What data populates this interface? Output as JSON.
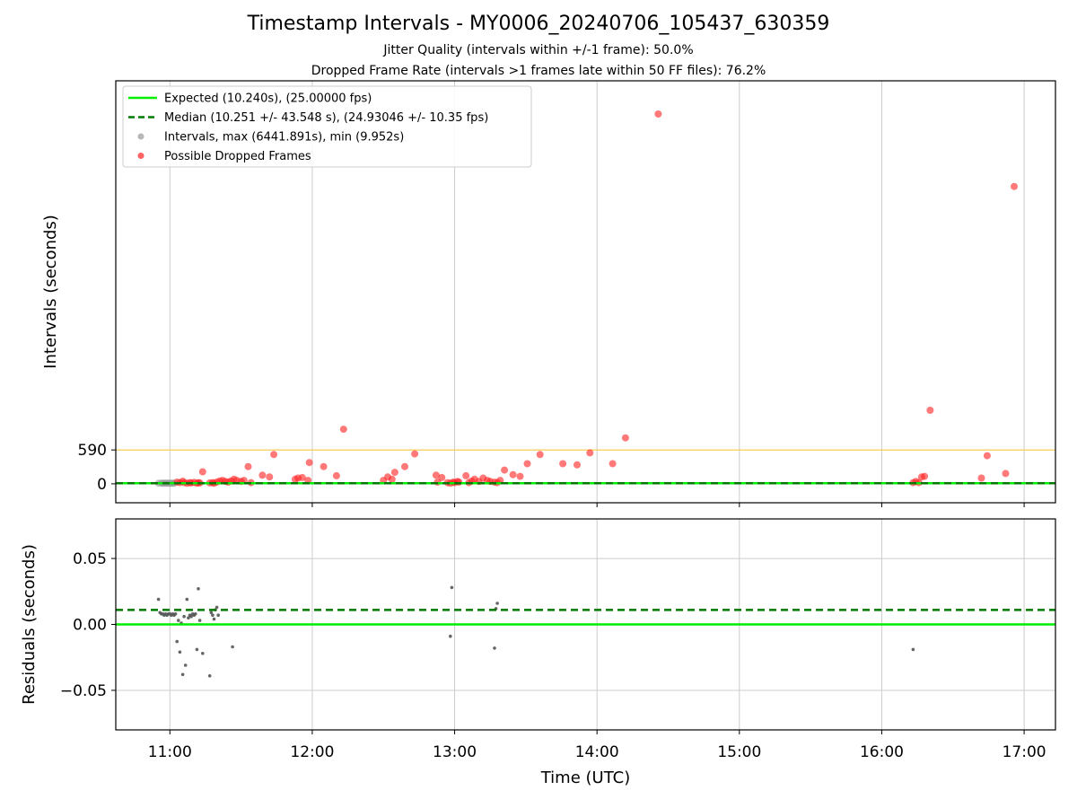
{
  "title": "Timestamp Intervals - MY0006_20240706_105437_630359",
  "subtitle_1": "Jitter Quality (intervals within +/-1 frame): 50.0%",
  "subtitle_2": "Dropped Frame Rate (intervals >1 frames late within 50 FF files): 76.2%",
  "colors": {
    "expected": "#00ee00",
    "median": "#007a00",
    "intervals": "#999999",
    "dropped": "#ff2020",
    "threshold": "#f5c842",
    "grid": "#cccccc"
  },
  "chart_data": [
    {
      "type": "scatter",
      "ylabel": "Intervals (seconds)",
      "xlabel": "",
      "x_range_hours": [
        10.62,
        17.22
      ],
      "y_range": [
        -330,
        7020
      ],
      "y_ticks": [
        0,
        590
      ],
      "y_tick_labels": [
        "0",
        "590"
      ],
      "x_tick_hours": [
        11,
        12,
        13,
        14,
        15,
        16,
        17
      ],
      "grid": true,
      "legend_position": "upper-left",
      "legend": [
        {
          "key": "expected",
          "label": "Expected (10.240s), (25.00000 fps)",
          "style": "solid-line"
        },
        {
          "key": "median",
          "label": "Median (10.251 +/- 43.548 s), (24.93046 +/- 10.35 fps)",
          "style": "dashed-line"
        },
        {
          "key": "intervals",
          "label": "Intervals, max (6441.891s), min (9.952s)",
          "style": "gray-dot"
        },
        {
          "key": "dropped",
          "label": "Possible Dropped Frames",
          "style": "red-dot"
        }
      ],
      "expected_value": 10.24,
      "median_value": 10.251,
      "threshold_value": 590,
      "series": [
        {
          "key": "intervals",
          "x_hours": [
            10.92,
            10.94,
            10.95,
            10.96,
            10.97,
            10.98,
            10.99,
            11.0,
            11.01,
            11.02,
            11.03
          ],
          "y": [
            10.3,
            10.2,
            10.3,
            10.2,
            10.3,
            10.2,
            10.3,
            10.2,
            10.3,
            10.2,
            10.3
          ]
        },
        {
          "key": "dropped",
          "x_hours": [
            11.05,
            11.07,
            11.09,
            11.1,
            11.12,
            11.14,
            11.15,
            11.17,
            11.19,
            11.2,
            11.21,
            11.23,
            11.28,
            11.3,
            11.31,
            11.33,
            11.35,
            11.37,
            11.39,
            11.41,
            11.43,
            11.45,
            11.47,
            11.5,
            11.52,
            11.55,
            11.57,
            11.65,
            11.7,
            11.73,
            11.88,
            11.9,
            11.93,
            11.97,
            11.98,
            12.08,
            12.17,
            12.22,
            12.5,
            12.53,
            12.56,
            12.58,
            12.65,
            12.72,
            12.87,
            12.88,
            12.91,
            12.95,
            12.97,
            12.99,
            13.0,
            13.02,
            13.03,
            13.08,
            13.1,
            13.12,
            13.14,
            13.17,
            13.2,
            13.23,
            13.25,
            13.28,
            13.3,
            13.32,
            13.35,
            13.41,
            13.46,
            13.51,
            13.6,
            13.76,
            13.86,
            13.95,
            14.11,
            14.2,
            14.43,
            16.22,
            16.24,
            16.26,
            16.28,
            16.3,
            16.34,
            16.7,
            16.74,
            16.87,
            16.93
          ],
          "y": [
            30,
            20,
            45,
            20,
            10,
            20,
            15,
            25,
            10,
            20,
            15,
            210,
            15,
            20,
            10,
            30,
            50,
            60,
            40,
            30,
            50,
            80,
            60,
            40,
            60,
            300,
            20,
            150,
            120,
            510,
            80,
            100,
            110,
            60,
            370,
            300,
            140,
            950,
            60,
            120,
            80,
            200,
            300,
            520,
            150,
            30,
            110,
            20,
            10,
            30,
            20,
            40,
            30,
            140,
            20,
            50,
            80,
            40,
            100,
            60,
            40,
            30,
            20,
            60,
            240,
            160,
            130,
            350,
            510,
            350,
            330,
            540,
            350,
            800,
            6441,
            20,
            40,
            20,
            120,
            130,
            1280,
            100,
            490,
            180,
            5180
          ]
        }
      ]
    },
    {
      "type": "scatter",
      "ylabel": "Residuals (seconds)",
      "xlabel": "Time (UTC)",
      "x_range_hours": [
        10.62,
        17.22
      ],
      "y_range": [
        -0.08,
        0.08
      ],
      "y_ticks": [
        0.05,
        0.0,
        -0.05
      ],
      "y_tick_labels": [
        "0.05",
        "0.00",
        "−0.05"
      ],
      "x_tick_hours": [
        11,
        12,
        13,
        14,
        15,
        16,
        17
      ],
      "x_tick_labels": [
        "11:00",
        "12:00",
        "13:00",
        "14:00",
        "15:00",
        "16:00",
        "17:00"
      ],
      "grid": true,
      "expected_value": 0.0,
      "median_value": 0.011,
      "series": [
        {
          "key": "residuals",
          "x_hours": [
            10.92,
            10.93,
            10.94,
            10.95,
            10.96,
            10.97,
            10.98,
            10.99,
            11.0,
            11.01,
            11.02,
            11.03,
            11.04,
            11.05,
            11.06,
            11.07,
            11.08,
            11.09,
            11.1,
            11.11,
            11.12,
            11.13,
            11.14,
            11.15,
            11.16,
            11.17,
            11.18,
            11.19,
            11.2,
            11.21,
            11.23,
            11.28,
            11.29,
            11.3,
            11.31,
            11.32,
            11.33,
            11.34,
            11.44,
            12.97,
            12.98,
            13.28,
            13.29,
            13.3,
            16.22
          ],
          "y": [
            0.019,
            0.009,
            0.008,
            0.008,
            0.007,
            0.008,
            0.007,
            0.008,
            0.008,
            0.007,
            0.008,
            0.007,
            0.008,
            -0.013,
            0.003,
            -0.021,
            0.001,
            -0.038,
            0.006,
            -0.031,
            0.019,
            0.005,
            0.007,
            0.006,
            0.008,
            0.007,
            0.008,
            -0.019,
            0.027,
            0.003,
            -0.022,
            -0.039,
            0.009,
            0.007,
            0.004,
            0.011,
            0.013,
            0.007,
            -0.017,
            -0.009,
            0.028,
            -0.018,
            0.012,
            0.016,
            -0.019
          ]
        }
      ]
    }
  ]
}
